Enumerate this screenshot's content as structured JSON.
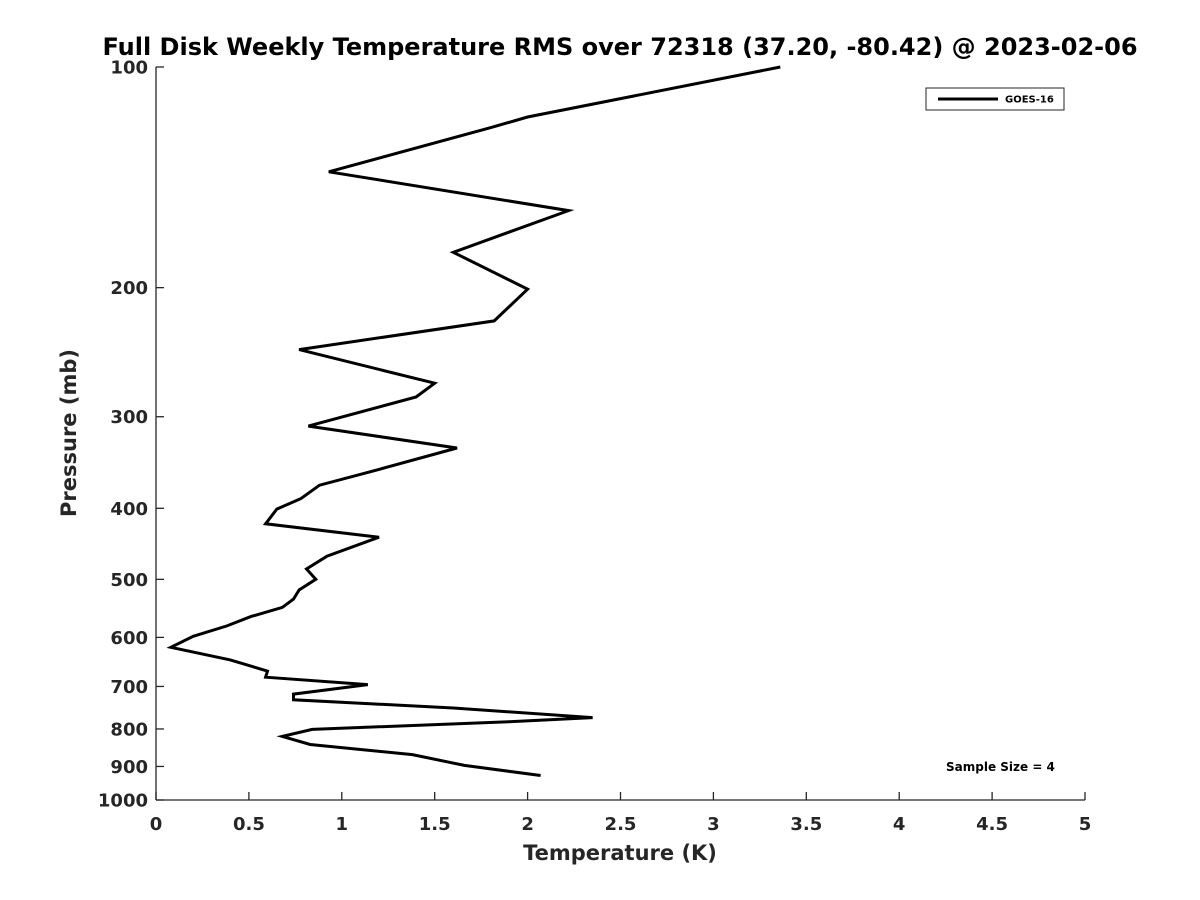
{
  "chart_data": {
    "type": "line",
    "title": "Full Disk Weekly Temperature RMS over 72318 (37.20, -80.42) @ 2023-02-06",
    "xlabel": "Temperature (K)",
    "ylabel": "Pressure (mb)",
    "xlim": [
      0,
      5
    ],
    "ylim": [
      100,
      1000
    ],
    "y_scale": "log",
    "y_reversed": true,
    "x_ticks": [
      0,
      0.5,
      1,
      1.5,
      2,
      2.5,
      3,
      3.5,
      4,
      4.5,
      5
    ],
    "x_tick_labels": [
      "0",
      "0.5",
      "1",
      "1.5",
      "2",
      "2.5",
      "3",
      "3.5",
      "4",
      "4.5",
      "5"
    ],
    "y_ticks": [
      100,
      200,
      300,
      400,
      500,
      600,
      700,
      800,
      900,
      1000
    ],
    "y_tick_labels": [
      "100",
      "200",
      "300",
      "400",
      "500",
      "600",
      "700",
      "800",
      "900",
      "1000"
    ],
    "grid": false,
    "legend": {
      "position": "top-right",
      "entries": [
        "GOES-16"
      ]
    },
    "annotation": "Sample Size = 4",
    "line_color": "#000000",
    "series": [
      {
        "name": "GOES-16",
        "x": [
          3.36,
          2.0,
          1.8,
          0.93,
          2.22,
          1.6,
          2.0,
          1.82,
          0.77,
          1.5,
          1.4,
          0.82,
          1.62,
          1.2,
          0.88,
          0.78,
          0.65,
          0.59,
          1.2,
          0.92,
          0.81,
          0.86,
          0.77,
          0.74,
          0.68,
          0.51,
          0.38,
          0.2,
          0.08,
          0.4,
          0.6,
          0.59,
          1.14,
          0.74,
          0.74,
          1.6,
          2.35,
          1.9,
          0.84,
          0.68,
          0.83,
          1.38,
          1.66,
          2.07
        ],
        "y": [
          100,
          117,
          121,
          139,
          157,
          179,
          201,
          222,
          243,
          270,
          282,
          309,
          331,
          354,
          372,
          388,
          401,
          420,
          438,
          465,
          484,
          500,
          517,
          532,
          546,
          562,
          579,
          598,
          619,
          644,
          667,
          680,
          696,
          717,
          730,
          749,
          772,
          782,
          801,
          819,
          840,
          867,
          897,
          926
        ]
      }
    ]
  }
}
